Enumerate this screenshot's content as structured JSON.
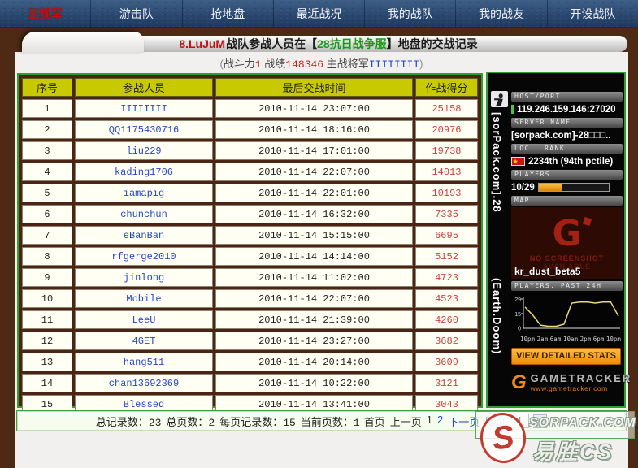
{
  "nav": {
    "items": [
      {
        "label": "正规军",
        "active": true
      },
      {
        "label": "游击队",
        "active": false
      },
      {
        "label": "抢地盘",
        "active": false
      },
      {
        "label": "最近战况",
        "active": false
      },
      {
        "label": "我的战队",
        "active": false
      },
      {
        "label": "我的战友",
        "active": false
      },
      {
        "label": "开设战队",
        "active": false
      }
    ]
  },
  "header": {
    "team": "8.LuJuM",
    "text_mid": "战队参战人员在【",
    "server": "28抗日战争服",
    "text_end": "】地盘的交战记录",
    "stats": {
      "open": "(",
      "label1": "战斗力",
      "value1": "1",
      "label2": " 战绩",
      "value2": "148346",
      "label3": " 主战将军",
      "value3": "IIIIIIII",
      "close": ")"
    }
  },
  "table": {
    "headers": [
      "序号",
      "参战人员",
      "最后交战时间",
      "作战得分"
    ],
    "rows": [
      [
        "1",
        "IIIIIIII",
        "2010-11-14 23:07:00",
        "25158"
      ],
      [
        "2",
        "QQ1175430716",
        "2010-11-14 18:16:00",
        "20976"
      ],
      [
        "3",
        "liu229",
        "2010-11-14 17:01:00",
        "19738"
      ],
      [
        "4",
        "kading1706",
        "2010-11-14 22:07:00",
        "14013"
      ],
      [
        "5",
        "iamapig",
        "2010-11-14 22:01:00",
        "10193"
      ],
      [
        "6",
        "chunchun",
        "2010-11-14 16:32:00",
        "7335"
      ],
      [
        "7",
        "eBanBan",
        "2010-11-14 15:15:00",
        "6695"
      ],
      [
        "8",
        "rfgerge2010",
        "2010-11-14 14:14:00",
        "5152"
      ],
      [
        "9",
        "jinlong",
        "2010-11-14 11:02:00",
        "4723"
      ],
      [
        "10",
        "Mobile",
        "2010-11-14 22:07:00",
        "4523"
      ],
      [
        "11",
        "LeeU",
        "2010-11-14 21:39:00",
        "4260"
      ],
      [
        "12",
        "4GET",
        "2010-11-14 23:27:00",
        "3682"
      ],
      [
        "13",
        "hang511",
        "2010-11-14 20:14:00",
        "3609"
      ],
      [
        "14",
        "chan13692369",
        "2010-11-14 10:22:00",
        "3121"
      ],
      [
        "15",
        "Blessed",
        "2010-11-14 13:41:00",
        "3043"
      ]
    ]
  },
  "pagination": {
    "stats": [
      {
        "label": "总记录数：",
        "value": "23"
      },
      {
        "label": "总页数：",
        "value": "2"
      },
      {
        "label": "每页记录数：",
        "value": "15"
      },
      {
        "label": "当前页数：",
        "value": "1"
      }
    ],
    "links": [
      {
        "label": "首页",
        "type": "plain"
      },
      {
        "label": "上一页",
        "type": "plain"
      },
      {
        "label": "1",
        "type": "current"
      },
      {
        "label": "2",
        "type": "link"
      },
      {
        "label": "下一页",
        "type": "link"
      },
      {
        "label": "尾页",
        "type": "link"
      }
    ],
    "page_input": "1",
    "go_icon": "▾"
  },
  "tracker": {
    "side_top": "[sorPack.com].28",
    "side_bottom": "(Earth.Doom)",
    "host_label": "HOST/PORT",
    "host": "119.246.159.146:27020",
    "server_label": "SERVER NAME",
    "server_name": "[sorpack.com]-28□□□..",
    "loc_label": "LOC",
    "rank_label": "RANK",
    "flag_star": "★",
    "rank": "2234th (94th pctile)",
    "players_label": "PLAYERS",
    "players": "10/29",
    "players_pct": 34,
    "map_label": "MAP",
    "map_logo_letter": "G",
    "no_shot_1": "NO SCREENSHOT",
    "no_shot_2": "AVAILABLE",
    "map_name": "kr_dust_beta5",
    "chart_label": "PLAYERS, PAST 24H",
    "button": "VIEW DETAILED STATS",
    "logo_letter": "G",
    "logo_text": "GAMETRACKER",
    "logo_url": "www.gametracker.com"
  },
  "chart_data": {
    "type": "line",
    "title": "PLAYERS, PAST 24H",
    "x_labels": [
      "10pm",
      "2am",
      "6am",
      "10am",
      "2pm",
      "6pm",
      "10pm"
    ],
    "values": [
      21,
      13,
      3,
      2,
      2,
      4,
      25,
      26,
      26,
      25,
      26,
      26,
      12
    ],
    "yticks": [
      "29",
      "15",
      "0"
    ],
    "ylim": [
      0,
      29
    ],
    "xlabel": "",
    "ylabel": "players",
    "line_color": "#e8d878",
    "grid": false,
    "legend": "none"
  },
  "watermark": {
    "s": "S",
    "brand": "SORPACK.COM",
    "cn": "易胜CS"
  },
  "colors": {
    "accent_green_border": "#2f9e2f",
    "table_header_bg": "#c9c900",
    "link_blue": "#2646c8",
    "score_red": "#cc4040",
    "nav_blue": "#2a4870",
    "body_brown": "#4e2a15",
    "tracker_orange": "#ee8c00"
  }
}
